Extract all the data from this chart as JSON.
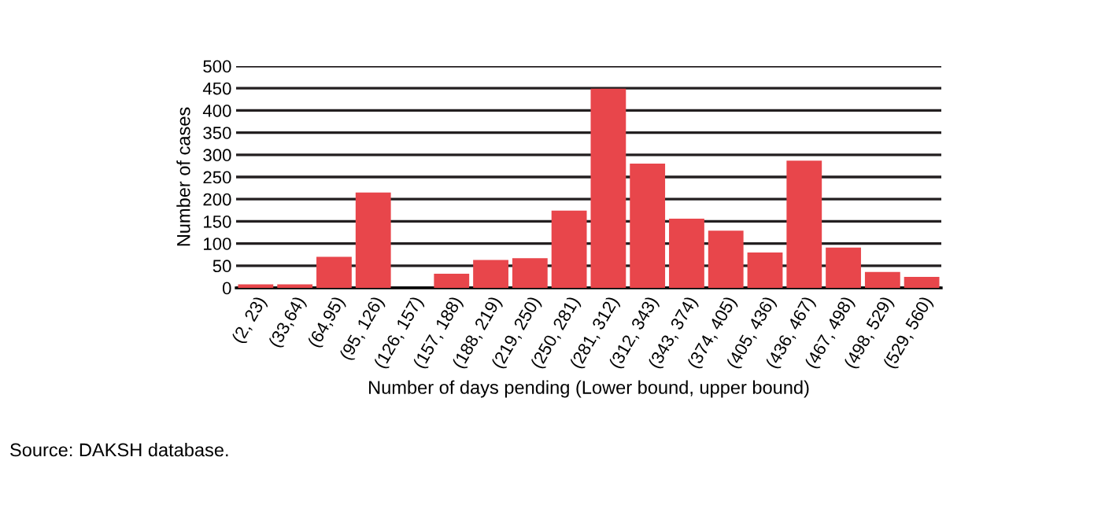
{
  "chart_data": {
    "type": "bar",
    "xlabel": "Number of days pending (Lower bound, upper bound)",
    "ylabel": "Number of cases",
    "categories": [
      "(2, 23)",
      "(33,64)",
      "(64,95)",
      "(95, 126)",
      "(126, 157)",
      "(157, 188)",
      "(188, 219)",
      "(219, 250)",
      "(250, 281)",
      "(281, 312)",
      "(312, 343)",
      "(343, 374)",
      "(374, 405)",
      "(405, 436)",
      "(436, 467)",
      "(467, 498)",
      "(498, 529)",
      "(529, 560)"
    ],
    "values": [
      8,
      8,
      70,
      215,
      0,
      32,
      63,
      67,
      174,
      449,
      280,
      156,
      129,
      80,
      287,
      91,
      36,
      25
    ],
    "color": "#e8464b",
    "ylim": [
      0,
      500
    ],
    "yticks": [
      0,
      50,
      100,
      150,
      200,
      250,
      300,
      350,
      400,
      450,
      500
    ],
    "grid": "y",
    "legend": false,
    "annotations": [
      "Source: DAKSH database."
    ]
  }
}
